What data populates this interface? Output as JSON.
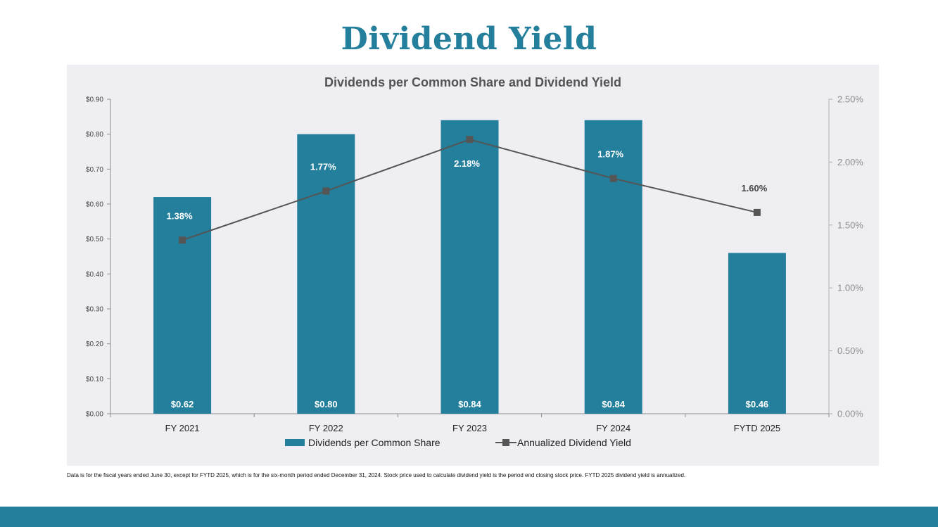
{
  "page": {
    "title": "Dividend Yield",
    "footnote": "Data is for the fiscal years ended June 30, except for FYTD 2025, which is for the six-month period ended December 31, 2024. Stock price used to calculate dividend yield is the period end closing stock price. FYTD 2025 dividend yield is annualized."
  },
  "colors": {
    "accent": "#237f9c",
    "bar": "#237f9c",
    "line": "#555555",
    "panel": "#efeff3"
  },
  "chart_data": {
    "type": "bar+line",
    "title": "Dividends per Common Share and Dividend Yield",
    "categories": [
      "FY 2021",
      "FY 2022",
      "FY 2023",
      "FY 2024",
      "FYTD 2025"
    ],
    "series": [
      {
        "name": "Dividends per Common Share",
        "type": "bar",
        "axis": "left",
        "values": [
          0.62,
          0.8,
          0.84,
          0.84,
          0.46
        ],
        "labels": [
          "$0.62",
          "$0.80",
          "$0.84",
          "$0.84",
          "$0.46"
        ]
      },
      {
        "name": "Annualized Dividend Yield",
        "type": "line",
        "axis": "right",
        "values": [
          1.38,
          1.77,
          2.18,
          1.87,
          1.6
        ],
        "labels": [
          "1.38%",
          "1.77%",
          "2.18%",
          "1.87%",
          "1.60%"
        ]
      }
    ],
    "y_left": {
      "range": [
        0,
        0.9
      ],
      "ticks": [
        0,
        0.1,
        0.2,
        0.3,
        0.4,
        0.5,
        0.6,
        0.7,
        0.8,
        0.9
      ],
      "tick_labels": [
        "$0.00",
        "$0.10",
        "$0.20",
        "$0.30",
        "$0.40",
        "$0.50",
        "$0.60",
        "$0.70",
        "$0.80",
        "$0.90"
      ]
    },
    "y_right": {
      "range": [
        0,
        2.5
      ],
      "ticks": [
        0,
        0.5,
        1.0,
        1.5,
        2.0,
        2.5
      ],
      "tick_labels": [
        "0.00%",
        "0.50%",
        "1.00%",
        "1.50%",
        "2.00%",
        "2.50%"
      ]
    },
    "grid": false,
    "legend": "bottom-center"
  }
}
